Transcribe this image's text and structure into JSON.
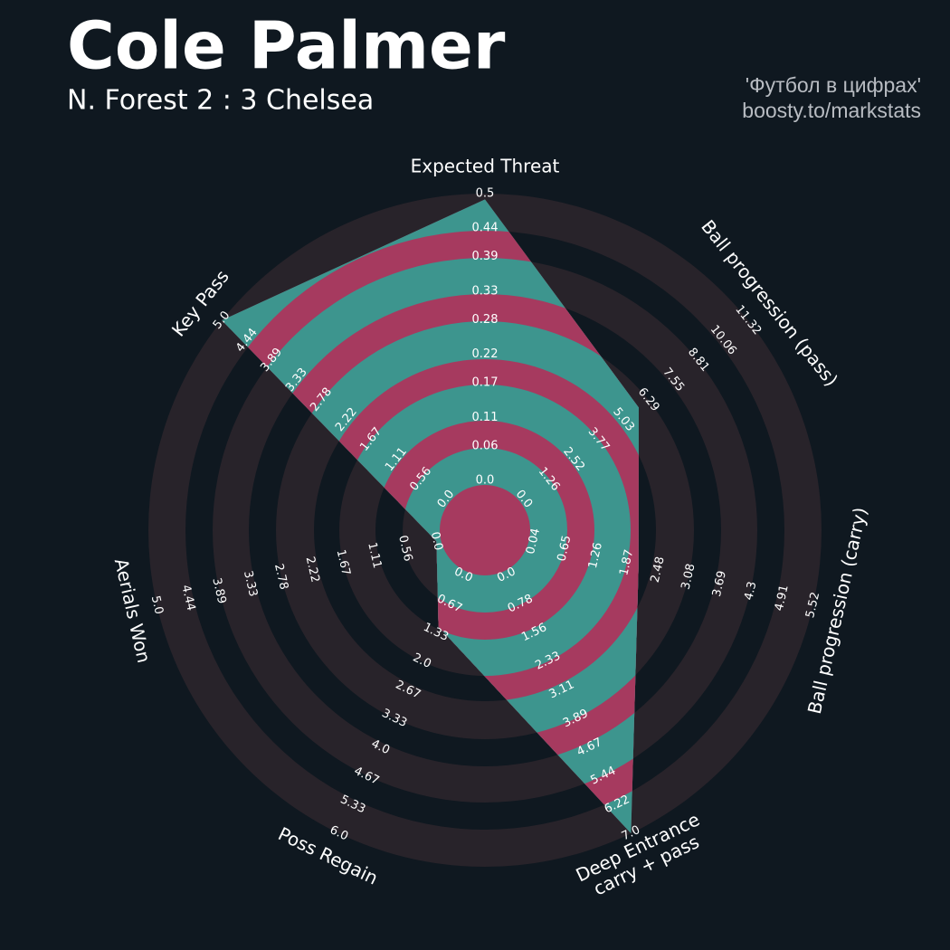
{
  "chart_data": {
    "type": "radar",
    "title": "Cole Palmer",
    "subtitle": "N. Forest 2 : 3 Chelsea",
    "credits": [
      "'Футбол в цифрах'",
      "boosty.to/markstats"
    ],
    "color": "#3d958e",
    "alt_color": "#a63a5f",
    "ring_color": "#28232a",
    "axes": [
      {
        "name": "Expected Threat",
        "lim": [
          0,
          0.5
        ],
        "ticks": [
          {
            "value": 0,
            "label": "0.0"
          },
          0.06,
          0.11,
          0.17,
          0.22,
          0.28,
          0.33,
          0.39,
          0.44,
          0.5
        ]
      },
      {
        "name": "Ball progression (pass)",
        "lim": [
          0,
          11.32
        ],
        "ticks": [
          {
            "value": 0,
            "label": "0.0"
          },
          1.26,
          2.52,
          3.77,
          5.03,
          6.29,
          7.55,
          8.81,
          10.06,
          11.32
        ]
      },
      {
        "name": "Ball progression (carry)",
        "lim": [
          0.04,
          5.52
        ],
        "ticks": [
          0.04,
          0.65,
          1.26,
          1.87,
          2.48,
          3.08,
          3.69,
          4.3,
          4.91,
          5.52
        ]
      },
      {
        "name": "Deep Entrance\ncarry + pass",
        "lim": [
          0,
          7
        ],
        "ticks": [
          {
            "value": 0,
            "label": "0.0"
          },
          0.78,
          1.56,
          2.33,
          3.11,
          3.89,
          4.67,
          5.44,
          6.22,
          {
            "value": 7,
            "label": "7.0"
          }
        ]
      },
      {
        "name": "Poss Regain",
        "lim": [
          0,
          6
        ],
        "ticks": [
          {
            "value": 0,
            "label": "0.0"
          },
          0.67,
          1.33,
          {
            "value": 2,
            "label": "2.0"
          },
          2.67,
          3.33,
          {
            "value": 4,
            "label": "4.0"
          },
          4.67,
          5.33,
          {
            "value": 6,
            "label": "6.0"
          }
        ]
      },
      {
        "name": "Aerials Won",
        "lim": [
          0,
          5
        ],
        "ticks": [
          {
            "value": 0,
            "label": "0.0"
          },
          0.56,
          1.11,
          1.67,
          2.22,
          2.78,
          3.33,
          3.89,
          4.44,
          {
            "value": 5,
            "label": "5.0"
          }
        ]
      },
      {
        "name": "Key Pass",
        "lim": [
          0,
          5
        ],
        "ticks": [
          {
            "value": 0,
            "label": "0.0"
          },
          0.56,
          1.11,
          1.67,
          2.22,
          2.78,
          3.33,
          3.89,
          4.44,
          {
            "value": 5,
            "label": "5.0"
          }
        ]
      }
    ],
    "values": [
      0.49,
      5.8,
      2.1,
      7.0,
      1.2,
      0,
      5.0
    ]
  }
}
